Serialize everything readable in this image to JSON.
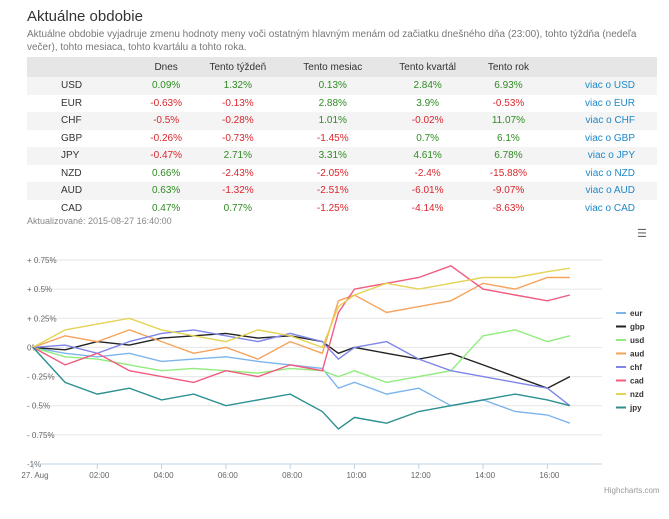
{
  "header": {
    "title": "Aktuálne obdobie",
    "subtitle": "Aktuálne obdobie vyjadruje zmenu hodnoty meny voči ostatným hlavným menám od začiatku dnešného dňa (23:00), tohto týždňa (nedeľa večer), tohto mesiaca, tohto kvartálu a tohto roka."
  },
  "table": {
    "columns": [
      "",
      "Dnes",
      "Tento týždeň",
      "Tento mesiac",
      "Tento kvartál",
      "Tento rok",
      ""
    ],
    "rows": [
      {
        "currency": "USD",
        "values": [
          "0.09%",
          "1.32%",
          "0.13%",
          "2.84%",
          "6.93%"
        ],
        "link": "viac o USD"
      },
      {
        "currency": "EUR",
        "values": [
          "-0.63%",
          "-0.13%",
          "2.88%",
          "3.9%",
          "-0.53%"
        ],
        "link": "viac o EUR"
      },
      {
        "currency": "CHF",
        "values": [
          "-0.5%",
          "-0.28%",
          "1.01%",
          "-0.02%",
          "11.07%"
        ],
        "link": "viac o CHF"
      },
      {
        "currency": "GBP",
        "values": [
          "-0.26%",
          "-0.73%",
          "-1.45%",
          "0.7%",
          "6.1%"
        ],
        "link": "viac o GBP"
      },
      {
        "currency": "JPY",
        "values": [
          "-0.47%",
          "2.71%",
          "3.31%",
          "4.61%",
          "6.78%"
        ],
        "link": "viac o JPY"
      },
      {
        "currency": "NZD",
        "values": [
          "0.66%",
          "-2.43%",
          "-2.05%",
          "-2.4%",
          "-15.88%"
        ],
        "link": "viac o NZD"
      },
      {
        "currency": "AUD",
        "values": [
          "0.63%",
          "-1.32%",
          "-2.51%",
          "-6.01%",
          "-9.07%"
        ],
        "link": "viac o AUD"
      },
      {
        "currency": "CAD",
        "values": [
          "0.47%",
          "0.77%",
          "-1.25%",
          "-4.14%",
          "-8.63%"
        ],
        "link": "viac o CAD"
      }
    ]
  },
  "updated": "Aktualizované: 2015-08-27 16:40:00",
  "menu_icon": "hamburger-menu-icon",
  "credit": "Highcharts.com",
  "colors": {
    "eur": "#7cb5ec",
    "gbp": "#222222",
    "usd": "#90ed7d",
    "aud": "#f7a35c",
    "chf": "#8085e9",
    "cad": "#f15c80",
    "nzd": "#e4d354",
    "jpy": "#2b908f"
  },
  "chart_data": {
    "type": "line",
    "ylim": [
      -1,
      0.75
    ],
    "y_ticks": [
      0.75,
      0.5,
      0.25,
      0,
      -0.25,
      -0.5,
      -0.75,
      -1
    ],
    "y_tick_labels": [
      "+ 0.75%",
      "+ 0.5%",
      "+ 0.25%",
      "0%",
      "- 0.25%",
      "- 0.5%",
      "- 0.75%",
      "-1%"
    ],
    "x_range": [
      0,
      17.7
    ],
    "x_ticks": [
      0,
      2,
      4,
      6,
      8,
      10,
      12,
      14,
      16
    ],
    "x_tick_labels": [
      "27. Aug",
      "02:00",
      "04:00",
      "06:00",
      "08:00",
      "10:00",
      "12:00",
      "14:00",
      "16:00"
    ],
    "series": [
      {
        "name": "eur",
        "x": [
          0,
          1,
          2,
          3,
          4,
          5,
          6,
          7,
          8,
          9,
          9.5,
          10,
          11,
          12,
          13,
          14,
          15,
          16,
          16.7
        ],
        "y": [
          0,
          -0.05,
          -0.08,
          -0.05,
          -0.12,
          -0.1,
          -0.08,
          -0.12,
          -0.15,
          -0.18,
          -0.35,
          -0.3,
          -0.4,
          -0.35,
          -0.5,
          -0.45,
          -0.55,
          -0.58,
          -0.65
        ]
      },
      {
        "name": "gbp",
        "x": [
          0,
          1,
          2,
          3,
          4,
          5,
          6,
          7,
          8,
          9,
          9.5,
          10,
          11,
          12,
          13,
          14,
          15,
          16,
          16.7
        ],
        "y": [
          0,
          -0.02,
          0.05,
          0.02,
          0.08,
          0.1,
          0.12,
          0.08,
          0.1,
          0.05,
          -0.05,
          0,
          -0.05,
          -0.1,
          -0.05,
          -0.15,
          -0.25,
          -0.35,
          -0.25
        ]
      },
      {
        "name": "usd",
        "x": [
          0,
          1,
          2,
          3,
          4,
          5,
          6,
          7,
          8,
          9,
          9.5,
          10,
          11,
          12,
          13,
          14,
          15,
          16,
          16.7
        ],
        "y": [
          0,
          -0.08,
          -0.1,
          -0.15,
          -0.2,
          -0.18,
          -0.2,
          -0.22,
          -0.18,
          -0.2,
          -0.25,
          -0.2,
          -0.3,
          -0.25,
          -0.2,
          0.1,
          0.15,
          0.05,
          0.1
        ]
      },
      {
        "name": "aud",
        "x": [
          0,
          1,
          2,
          3,
          4,
          5,
          6,
          7,
          8,
          9,
          9.5,
          10,
          11,
          12,
          13,
          14,
          15,
          16,
          16.7
        ],
        "y": [
          0,
          0.1,
          0.05,
          0.15,
          0.05,
          -0.05,
          0,
          -0.1,
          0.05,
          -0.05,
          0.4,
          0.45,
          0.3,
          0.35,
          0.4,
          0.55,
          0.5,
          0.6,
          0.6
        ]
      },
      {
        "name": "chf",
        "x": [
          0,
          1,
          2,
          3,
          4,
          5,
          6,
          7,
          8,
          9,
          9.5,
          10,
          11,
          12,
          13,
          14,
          15,
          16,
          16.7
        ],
        "y": [
          0,
          0.02,
          -0.05,
          0.05,
          0.12,
          0.15,
          0.1,
          0.05,
          0.12,
          0.05,
          -0.1,
          0,
          0.05,
          -0.1,
          -0.2,
          -0.25,
          -0.3,
          -0.35,
          -0.5
        ]
      },
      {
        "name": "cad",
        "x": [
          0,
          1,
          2,
          3,
          4,
          5,
          6,
          7,
          8,
          9,
          9.5,
          10,
          11,
          12,
          13,
          14,
          15,
          16,
          16.7
        ],
        "y": [
          0,
          -0.15,
          -0.05,
          -0.2,
          -0.25,
          -0.3,
          -0.2,
          -0.25,
          -0.15,
          -0.2,
          0.3,
          0.5,
          0.55,
          0.6,
          0.7,
          0.5,
          0.45,
          0.4,
          0.45
        ]
      },
      {
        "name": "nzd",
        "x": [
          0,
          1,
          2,
          3,
          4,
          5,
          6,
          7,
          8,
          9,
          9.5,
          10,
          11,
          12,
          13,
          14,
          15,
          16,
          16.7
        ],
        "y": [
          0,
          0.15,
          0.2,
          0.25,
          0.15,
          0.1,
          0.05,
          0.15,
          0.1,
          0.0,
          0.35,
          0.45,
          0.55,
          0.5,
          0.55,
          0.6,
          0.6,
          0.65,
          0.68
        ]
      },
      {
        "name": "jpy",
        "x": [
          0,
          1,
          2,
          3,
          4,
          5,
          6,
          7,
          8,
          9,
          9.5,
          10,
          11,
          12,
          13,
          14,
          15,
          16,
          16.7
        ],
        "y": [
          0,
          -0.3,
          -0.4,
          -0.35,
          -0.45,
          -0.4,
          -0.5,
          -0.45,
          -0.4,
          -0.55,
          -0.7,
          -0.6,
          -0.65,
          -0.55,
          -0.5,
          -0.45,
          -0.4,
          -0.45,
          -0.5
        ]
      }
    ]
  }
}
